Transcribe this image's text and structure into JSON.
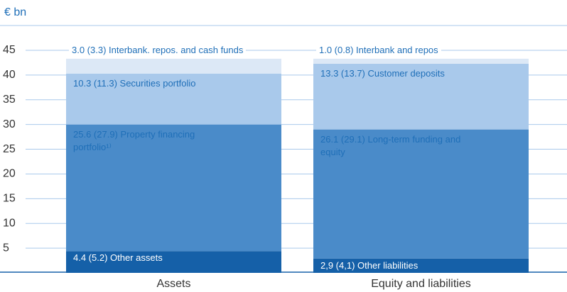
{
  "chart_data": {
    "type": "stacked_bar",
    "y_label": "€ bn",
    "categories": [
      "Assets",
      "Equity and liabilities"
    ],
    "ylim": [
      0,
      45
    ],
    "yticks": [
      5,
      10,
      15,
      20,
      25,
      30,
      35,
      40,
      45
    ],
    "grid": true,
    "series": [
      {
        "color": "#1560a8",
        "values": [
          4.4,
          2.9
        ],
        "value_labels": [
          "4.4 (5.2) Other assets",
          "2,9 (4,1) Other liabilities"
        ]
      },
      {
        "color": "#4a8bc9",
        "values": [
          25.6,
          26.1
        ],
        "value_labels": [
          "25.6 (27.9) Property financing portfolio¹⁾",
          "26.1 (29.1) Long-term funding and equity"
        ]
      },
      {
        "color": "#a9c9eb",
        "values": [
          10.3,
          13.3
        ],
        "value_labels": [
          "10.3 (11.3) Securities portfolio",
          "13.3 (13.7) Customer deposits"
        ]
      },
      {
        "color": "#dce8f6",
        "values": [
          3.0,
          1.0
        ],
        "value_labels": [
          "3.0 (3.3) Interbank. repos. and cash funds",
          "1.0 (0.8) Interbank and repos"
        ]
      }
    ]
  }
}
